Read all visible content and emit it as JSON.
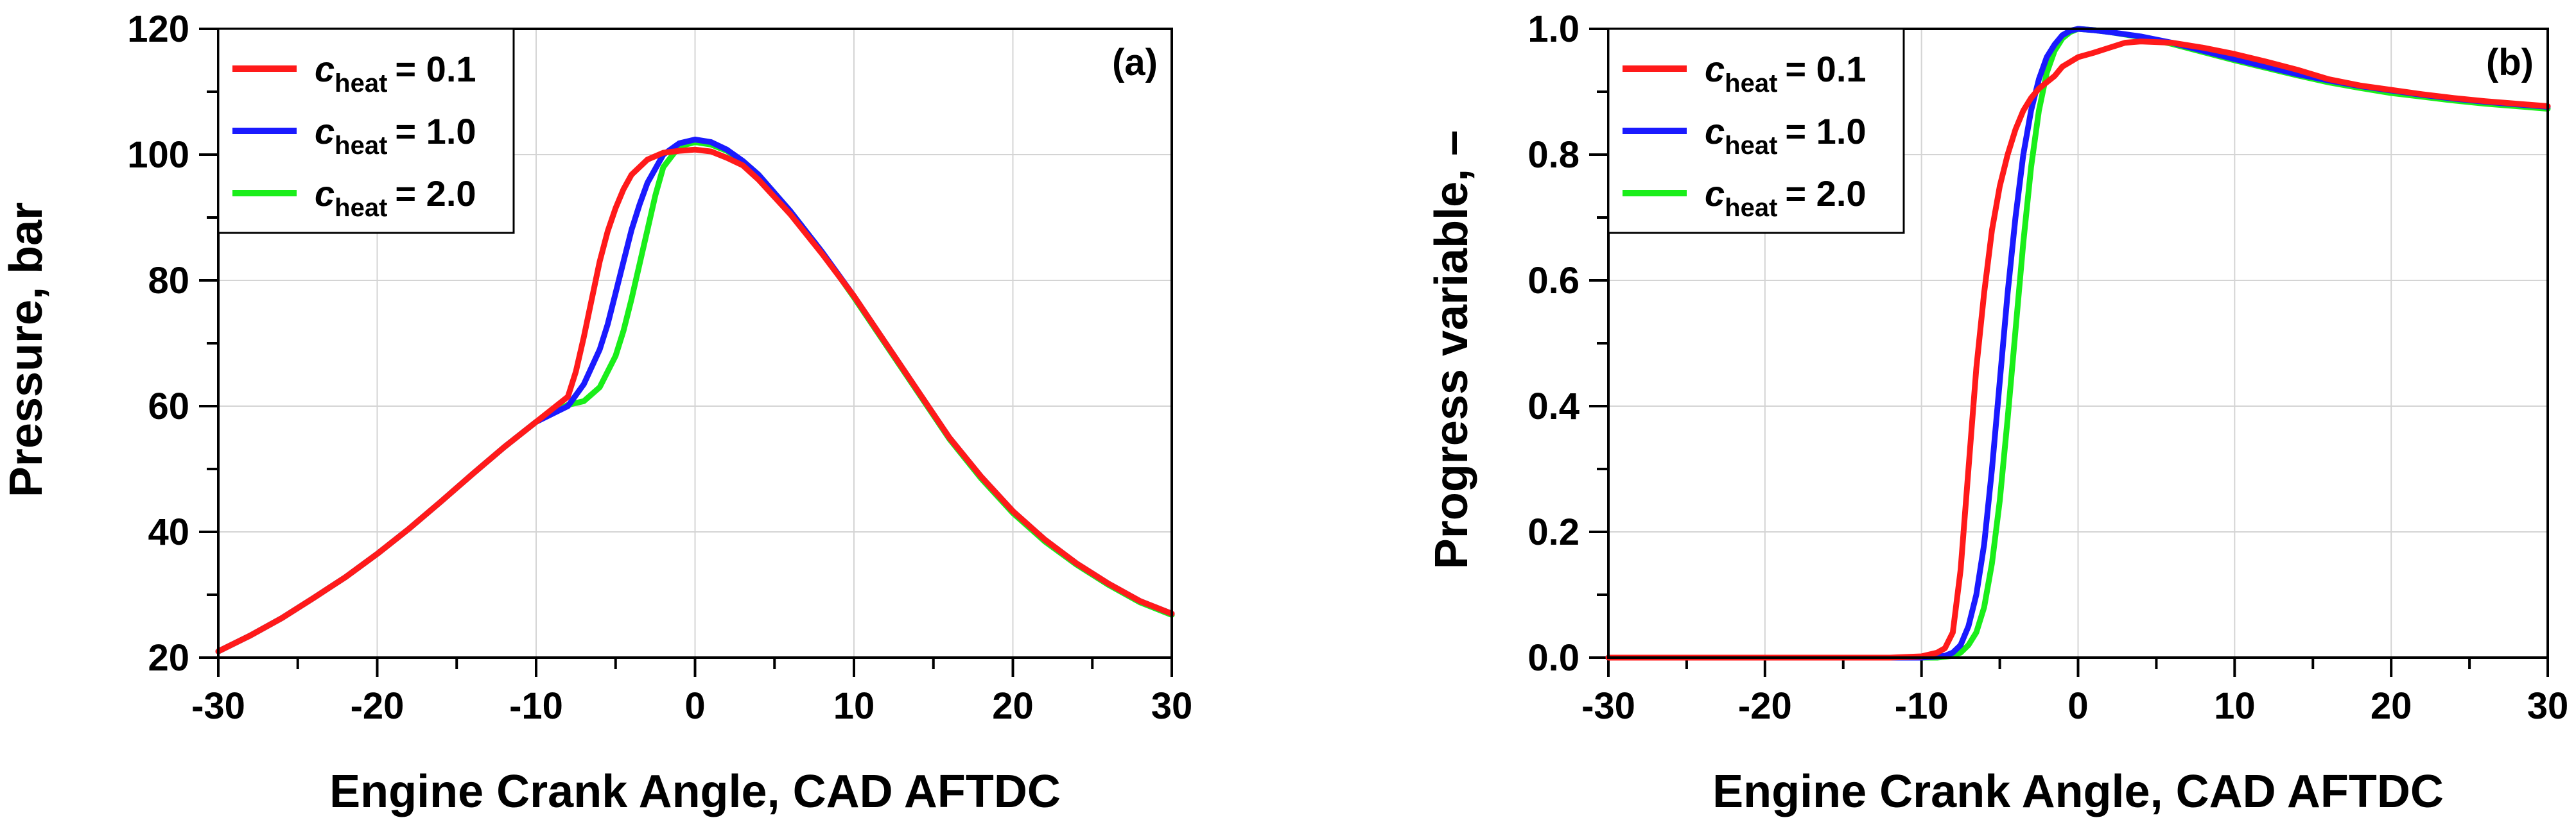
{
  "chart_data": [
    {
      "type": "line",
      "panel_label": "(a)",
      "xlabel": "Engine Crank Angle, CAD AFTDC",
      "ylabel": "Pressure, bar",
      "xlim": [
        -30,
        30
      ],
      "ylim": [
        20,
        120
      ],
      "xticks": [
        -30,
        -20,
        -10,
        0,
        10,
        20,
        30
      ],
      "yticks": [
        20,
        40,
        60,
        80,
        100,
        120
      ],
      "xtick_labels": [
        "-30",
        "-20",
        "-10",
        "0",
        "10",
        "20",
        "30"
      ],
      "ytick_labels": [
        "20",
        "40",
        "60",
        "80",
        "100",
        "120"
      ],
      "grid": true,
      "legend_position": "top-left",
      "series": [
        {
          "name": "c_heat = 0.1",
          "legend_var": "c",
          "legend_sub": "heat",
          "legend_value": "= 0.1",
          "color": "#ff1a1a",
          "x": [
            -30,
            -28,
            -26,
            -24,
            -22,
            -20,
            -18,
            -16,
            -14,
            -12,
            -10,
            -8,
            -7.5,
            -7,
            -6.5,
            -6,
            -5.5,
            -5,
            -4.5,
            -4,
            -3,
            -2,
            -1,
            0,
            1,
            2,
            3,
            4,
            6,
            8,
            10,
            12,
            14,
            16,
            18,
            20,
            22,
            24,
            26,
            28,
            30
          ],
          "y": [
            21,
            23.5,
            26.3,
            29.5,
            32.8,
            36.5,
            40.5,
            44.8,
            49.2,
            53.5,
            57.5,
            61.5,
            65.5,
            71,
            77,
            83,
            87.8,
            91.5,
            94.5,
            96.8,
            99.2,
            100.3,
            100.6,
            100.8,
            100.5,
            99.5,
            98.3,
            96,
            90.5,
            84.2,
            77.5,
            70,
            62.5,
            55,
            48.8,
            43.3,
            38.8,
            35,
            31.8,
            29,
            27
          ]
        },
        {
          "name": "c_heat = 1.0",
          "legend_var": "c",
          "legend_sub": "heat",
          "legend_value": "= 1.0",
          "color": "#1a1aff",
          "x": [
            -30,
            -28,
            -26,
            -24,
            -22,
            -20,
            -18,
            -16,
            -14,
            -12,
            -10,
            -8,
            -7,
            -6,
            -5.5,
            -5,
            -4.5,
            -4,
            -3.5,
            -3,
            -2,
            -1,
            0,
            1,
            2,
            3,
            4,
            6,
            8,
            10,
            12,
            14,
            16,
            18,
            20,
            22,
            24,
            26,
            28,
            30
          ],
          "y": [
            21,
            23.5,
            26.3,
            29.5,
            32.8,
            36.5,
            40.5,
            44.8,
            49.2,
            53.5,
            57.5,
            60,
            63.5,
            69,
            73,
            78,
            83,
            88,
            92,
            95.5,
            100,
            101.8,
            102.4,
            102,
            100.8,
            99,
            96.8,
            91,
            84.5,
            77.5,
            70,
            62.5,
            55,
            48.8,
            43.3,
            38.8,
            35,
            31.8,
            29,
            27
          ]
        },
        {
          "name": "c_heat = 2.0",
          "legend_var": "c",
          "legend_sub": "heat",
          "legend_value": "= 2.0",
          "color": "#1aee1a",
          "x": [
            -30,
            -28,
            -26,
            -24,
            -22,
            -20,
            -18,
            -16,
            -14,
            -12,
            -10,
            -8,
            -7,
            -6,
            -5,
            -4.5,
            -4,
            -3.5,
            -3,
            -2.5,
            -2,
            -1,
            0,
            1,
            2,
            3,
            4,
            6,
            8,
            10,
            12,
            14,
            16,
            18,
            20,
            22,
            24,
            26,
            28,
            30
          ],
          "y": [
            21,
            23.5,
            26.3,
            29.5,
            32.8,
            36.5,
            40.5,
            44.8,
            49.2,
            53.5,
            57.5,
            60.2,
            60.8,
            63,
            68,
            72,
            77,
            82.5,
            88,
            93.5,
            98,
            101.3,
            102,
            101.6,
            100.6,
            99,
            96.8,
            91,
            84.5,
            77.3,
            69.8,
            62.3,
            54.8,
            48.5,
            43,
            38.5,
            34.8,
            31.6,
            28.8,
            26.8
          ]
        }
      ]
    },
    {
      "type": "line",
      "panel_label": "(b)",
      "xlabel": "Engine Crank Angle, CAD AFTDC",
      "ylabel": "Progress variable, –",
      "xlim": [
        -30,
        30
      ],
      "ylim": [
        0,
        1
      ],
      "xticks": [
        -30,
        -20,
        -10,
        0,
        10,
        20,
        30
      ],
      "yticks": [
        0,
        0.2,
        0.4,
        0.6,
        0.8,
        1.0
      ],
      "xtick_labels": [
        "-30",
        "-20",
        "-10",
        "0",
        "10",
        "20",
        "30"
      ],
      "ytick_labels": [
        "0.0",
        "0.2",
        "0.4",
        "0.6",
        "0.8",
        "1.0"
      ],
      "grid": true,
      "legend_position": "top-left",
      "series": [
        {
          "name": "c_heat = 0.1",
          "legend_var": "c",
          "legend_sub": "heat",
          "legend_value": "= 0.1",
          "color": "#ff1a1a",
          "x": [
            -30,
            -12,
            -10,
            -9,
            -8.5,
            -8,
            -7.5,
            -7,
            -6.5,
            -6,
            -5.5,
            -5,
            -4.5,
            -4,
            -3.5,
            -3,
            -2.5,
            -2,
            -1.5,
            -1,
            0,
            1,
            2,
            3,
            4,
            6,
            8,
            10,
            12,
            14,
            16,
            18,
            20,
            22,
            24,
            26,
            28,
            30
          ],
          "y": [
            0,
            0,
            0.002,
            0.008,
            0.015,
            0.04,
            0.14,
            0.3,
            0.46,
            0.58,
            0.68,
            0.75,
            0.8,
            0.84,
            0.87,
            0.89,
            0.905,
            0.915,
            0.925,
            0.94,
            0.955,
            0.962,
            0.97,
            0.978,
            0.98,
            0.978,
            0.97,
            0.96,
            0.948,
            0.935,
            0.92,
            0.91,
            0.903,
            0.896,
            0.89,
            0.885,
            0.881,
            0.877
          ]
        },
        {
          "name": "c_heat = 1.0",
          "legend_var": "c",
          "legend_sub": "heat",
          "legend_value": "= 1.0",
          "color": "#1a1aff",
          "x": [
            -30,
            -10,
            -8.5,
            -8,
            -7.5,
            -7,
            -6.5,
            -6,
            -5.5,
            -5,
            -4.5,
            -4,
            -3.5,
            -3,
            -2.5,
            -2,
            -1.5,
            -1,
            -0.5,
            0,
            1,
            2,
            4,
            6,
            8,
            10,
            12,
            14,
            16,
            18,
            20,
            22,
            24,
            26,
            28,
            30
          ],
          "y": [
            0,
            0,
            0.003,
            0.008,
            0.02,
            0.05,
            0.1,
            0.18,
            0.3,
            0.44,
            0.58,
            0.7,
            0.8,
            0.87,
            0.92,
            0.955,
            0.975,
            0.99,
            0.997,
            1.0,
            0.998,
            0.995,
            0.988,
            0.978,
            0.965,
            0.952,
            0.94,
            0.928,
            0.918,
            0.909,
            0.902,
            0.895,
            0.889,
            0.884,
            0.88,
            0.876
          ]
        },
        {
          "name": "c_heat = 2.0",
          "legend_var": "c",
          "legend_sub": "heat",
          "legend_value": "= 2.0",
          "color": "#1aee1a",
          "x": [
            -30,
            -9,
            -8,
            -7.5,
            -7,
            -6.5,
            -6,
            -5.5,
            -5,
            -4.5,
            -4,
            -3.5,
            -3,
            -2.5,
            -2,
            -1.5,
            -1,
            -0.5,
            0,
            1,
            2,
            4,
            6,
            8,
            10,
            12,
            14,
            16,
            18,
            20,
            22,
            24,
            26,
            28,
            30
          ],
          "y": [
            0,
            0,
            0.003,
            0.008,
            0.02,
            0.04,
            0.08,
            0.15,
            0.25,
            0.38,
            0.52,
            0.66,
            0.78,
            0.87,
            0.93,
            0.965,
            0.985,
            0.995,
            1.0,
            0.998,
            0.995,
            0.987,
            0.976,
            0.963,
            0.95,
            0.938,
            0.926,
            0.915,
            0.906,
            0.898,
            0.892,
            0.886,
            0.881,
            0.877,
            0.873
          ]
        }
      ]
    }
  ]
}
